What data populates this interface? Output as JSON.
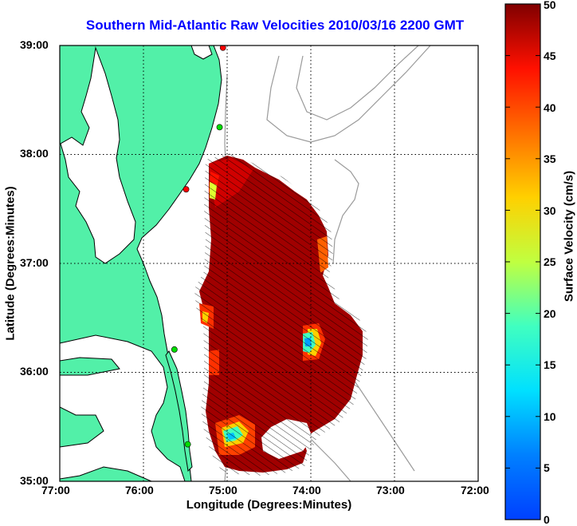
{
  "title": "Southern Mid-Atlantic Raw Velocities 2010/03/16 2200 GMT",
  "x_axis": {
    "label": "Longitude (Degrees:Minutes)",
    "ticks": [
      "77:00",
      "76:00",
      "75:00",
      "74:00",
      "73:00",
      "72:00"
    ],
    "range": [
      -77,
      -72
    ]
  },
  "y_axis": {
    "label": "Latitude (Degrees:Minutes)",
    "ticks": [
      "39:00",
      "38:00",
      "37:00",
      "36:00",
      "35:00"
    ],
    "range": [
      35,
      39
    ]
  },
  "colorbar": {
    "label": "Surface Velocity (cm/s)",
    "ticks": [
      "50",
      "45",
      "40",
      "35",
      "30",
      "25",
      "20",
      "15",
      "10",
      "5",
      "0"
    ],
    "range": [
      0,
      50
    ],
    "colormap": "jet"
  },
  "colors": {
    "land": "#52f0a8",
    "ocean": "#ffffff",
    "coastline": "#000000",
    "bathymetry": "#9a9a9a",
    "grid": "#000000",
    "title": "#0000ff",
    "station_active": "#00dd00",
    "station_inactive": "#ff0000"
  },
  "stations": [
    {
      "lon": -75.05,
      "lat": 38.98,
      "status": "inactive"
    },
    {
      "lon": -75.09,
      "lat": 38.25,
      "status": "active"
    },
    {
      "lon": -75.49,
      "lat": 37.68,
      "status": "inactive"
    },
    {
      "lon": -75.63,
      "lat": 36.21,
      "status": "active"
    },
    {
      "lon": -75.47,
      "lat": 35.34,
      "status": "active"
    }
  ],
  "field_summary": "Radial current field with mostly >40 cm/s speeds (dark red) and slower pockets near 36.2N 74.1W and 35.5N 75.2W"
}
